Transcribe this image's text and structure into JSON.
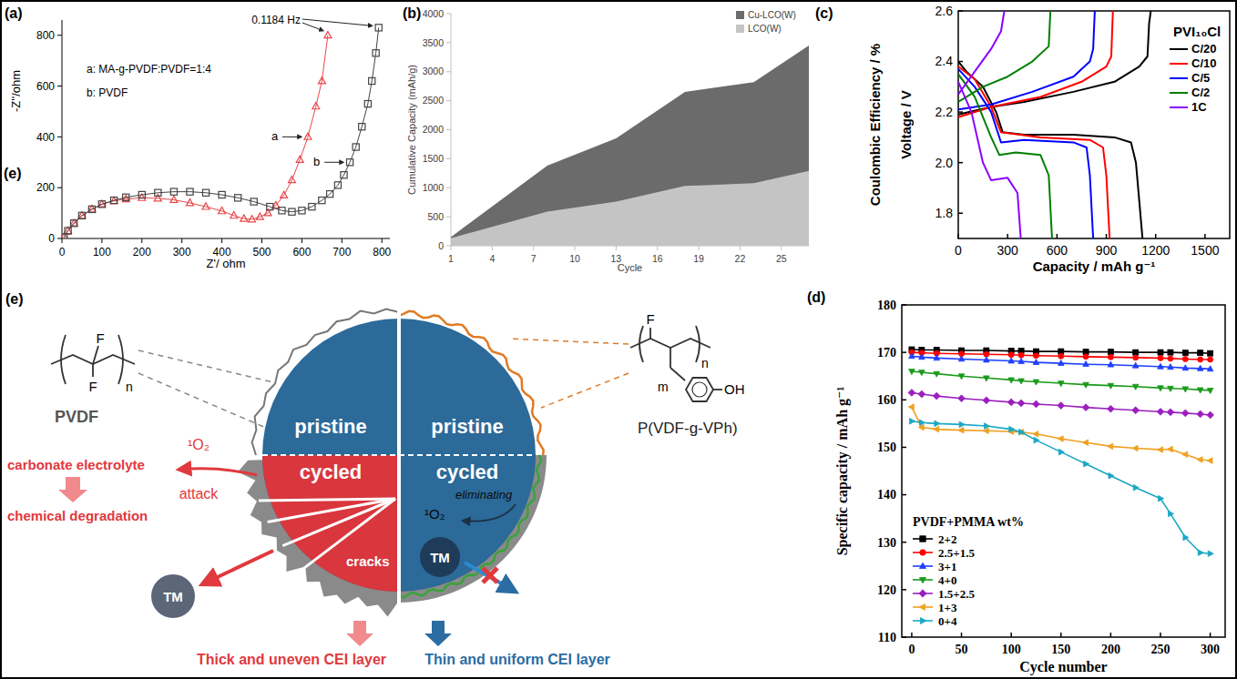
{
  "chart_data": [
    {
      "panel": "(a)",
      "type": "scatter",
      "x_label": "Z'/ ohm",
      "y_label": "-Z''/ohm",
      "xlim": [
        0,
        820
      ],
      "ylim": [
        0,
        860
      ],
      "xticks": [
        0,
        100,
        200,
        300,
        400,
        500,
        600,
        700,
        800
      ],
      "yticks": [
        0,
        200,
        400,
        600,
        800
      ],
      "annotations": [
        "0.1184 Hz",
        "(e)"
      ],
      "series": [
        {
          "name": "a: MA-g-PVDF:PVDF=1:4",
          "label": "a",
          "color": "#e8474b",
          "marker": "triangle",
          "line_style": "solid",
          "x": [
            5,
            15,
            30,
            50,
            75,
            100,
            130,
            160,
            200,
            240,
            280,
            320,
            360,
            400,
            430,
            455,
            475,
            495,
            515,
            535,
            555,
            575,
            595,
            615,
            635,
            650,
            665
          ],
          "values": [
            5,
            30,
            60,
            90,
            115,
            135,
            148,
            155,
            160,
            158,
            152,
            140,
            125,
            108,
            90,
            78,
            75,
            85,
            100,
            130,
            170,
            230,
            310,
            400,
            520,
            620,
            800
          ]
        },
        {
          "name": "b: PVDF",
          "label": "b",
          "color": "#444444",
          "marker": "square",
          "line_style": "solid",
          "x": [
            5,
            15,
            30,
            50,
            75,
            100,
            130,
            160,
            200,
            240,
            280,
            320,
            360,
            400,
            440,
            480,
            520,
            550,
            575,
            600,
            625,
            650,
            670,
            690,
            705,
            720,
            735,
            750,
            765,
            775,
            785,
            792
          ],
          "values": [
            5,
            30,
            60,
            90,
            115,
            135,
            150,
            162,
            172,
            180,
            184,
            184,
            180,
            172,
            160,
            145,
            125,
            110,
            105,
            110,
            125,
            150,
            175,
            210,
            250,
            300,
            360,
            440,
            530,
            620,
            730,
            830
          ]
        }
      ]
    },
    {
      "panel": "(b)",
      "type": "area",
      "stacked": false,
      "legend": "top-right",
      "x_label": "Cycle",
      "y_label": "Cumulative Capacity (mAh/g)",
      "xlim": [
        1,
        27
      ],
      "xticks": [
        1,
        4,
        7,
        10,
        13,
        16,
        19,
        22,
        25
      ],
      "ylim": [
        0,
        4000
      ],
      "yticks": [
        0,
        500,
        1000,
        1500,
        2000,
        2500,
        3000,
        3500,
        4000
      ],
      "series": [
        {
          "name": "Cu-LCO(W)",
          "color": "#6b6b6b",
          "x": [
            1,
            8,
            13,
            18,
            23,
            27
          ],
          "values": [
            150,
            1380,
            1850,
            2650,
            2820,
            3450
          ]
        },
        {
          "name": "LCO(W)",
          "color": "#c4c4c4",
          "x": [
            1,
            8,
            13,
            18,
            23,
            27
          ],
          "values": [
            130,
            590,
            760,
            1030,
            1080,
            1290
          ]
        }
      ]
    },
    {
      "panel": "(c)",
      "type": "line",
      "legend": "top-right",
      "legend_title": "PVI₁₀Cl",
      "x_label": "Capacity / mAh g⁻¹",
      "y_label": "Voltage / V",
      "y_label_2": "Coulombic Efficiency / %",
      "xlim": [
        0,
        1650
      ],
      "xticks": [
        0,
        300,
        600,
        900,
        1200,
        1500
      ],
      "ylim": [
        1.7,
        2.6
      ],
      "yticks": [
        1.8,
        {
          "value": 2,
          "label": "2.0"
        },
        2.2,
        2.4,
        2.6
      ],
      "series": [
        {
          "name": "C/20",
          "color": "#000000",
          "line_style": "solid",
          "x": [
            0,
            50,
            150,
            230,
            270,
            400,
            700,
            950,
            1050,
            1080,
            1100,
            1120,
            null,
            0,
            200,
            400,
            700,
            950,
            1100,
            1150,
            1160,
            1170
          ],
          "values": [
            2.4,
            2.36,
            2.3,
            2.2,
            2.12,
            2.11,
            2.11,
            2.1,
            2.08,
            2.0,
            1.85,
            1.7,
            null,
            2.19,
            2.22,
            2.24,
            2.28,
            2.32,
            2.38,
            2.42,
            2.55,
            2.6
          ]
        },
        {
          "name": "C/10",
          "color": "#ff0000",
          "line_style": "solid",
          "x": [
            0,
            100,
            200,
            260,
            500,
            800,
            880,
            900,
            920,
            null,
            0,
            200,
            500,
            750,
            900,
            930,
            940
          ],
          "values": [
            2.38,
            2.33,
            2.22,
            2.12,
            2.1,
            2.09,
            2.06,
            1.95,
            1.7,
            null,
            2.18,
            2.22,
            2.26,
            2.32,
            2.38,
            2.42,
            2.6
          ]
        },
        {
          "name": "C/5",
          "color": "#0000ff",
          "line_style": "solid",
          "x": [
            0,
            100,
            200,
            260,
            400,
            700,
            780,
            800,
            820,
            null,
            0,
            200,
            450,
            700,
            800,
            820,
            830
          ],
          "values": [
            2.37,
            2.3,
            2.2,
            2.08,
            2.09,
            2.08,
            2.06,
            1.95,
            1.7,
            null,
            2.21,
            2.23,
            2.28,
            2.34,
            2.4,
            2.45,
            2.6
          ]
        },
        {
          "name": "C/2",
          "color": "#008000",
          "line_style": "solid",
          "x": [
            0,
            100,
            200,
            250,
            350,
            500,
            550,
            570,
            null,
            0,
            150,
            300,
            450,
            550,
            560
          ],
          "values": [
            2.35,
            2.26,
            2.1,
            2.03,
            2.04,
            2.03,
            1.95,
            1.7,
            null,
            2.24,
            2.3,
            2.34,
            2.4,
            2.46,
            2.6
          ]
        },
        {
          "name": "1C",
          "color": "#8b00ff",
          "line_style": "solid",
          "x": [
            0,
            80,
            150,
            200,
            300,
            360,
            380,
            null,
            0,
            100,
            200,
            260,
            280
          ],
          "values": [
            2.32,
            2.2,
            2.0,
            1.93,
            1.94,
            1.88,
            1.7,
            null,
            2.27,
            2.36,
            2.45,
            2.52,
            2.6
          ]
        }
      ]
    },
    {
      "panel": "(d)",
      "type": "line",
      "legend": "bottom-left",
      "legend_title": "PVDF+PMMA wt%",
      "x_label": "Cycle number",
      "y_label": "Specific capacity / mAh g⁻¹",
      "xlim": [
        -10,
        315
      ],
      "xticks": [
        0,
        50,
        100,
        150,
        200,
        250,
        300
      ],
      "ylim": [
        110,
        180
      ],
      "yticks": [
        110,
        120,
        130,
        140,
        150,
        160,
        170,
        180
      ],
      "x": [
        0,
        10,
        25,
        50,
        75,
        100,
        110,
        125,
        150,
        175,
        200,
        225,
        250,
        260,
        275,
        290,
        300
      ],
      "series": [
        {
          "name": "2+2",
          "color": "#000000",
          "marker": "square",
          "values": [
            170.6,
            170.5,
            170.5,
            170.4,
            170.4,
            170.3,
            170.3,
            170.2,
            170.2,
            170.1,
            170.1,
            170.0,
            170.0,
            170.0,
            169.9,
            169.9,
            169.8
          ]
        },
        {
          "name": "2.5+1.5",
          "color": "#ff0000",
          "marker": "circle",
          "values": [
            170.0,
            169.9,
            169.8,
            169.7,
            169.6,
            169.5,
            169.4,
            169.3,
            169.2,
            169.1,
            169.0,
            168.9,
            168.8,
            168.7,
            168.6,
            168.5,
            168.5
          ]
        },
        {
          "name": "3+1",
          "color": "#1f3fff",
          "marker": "triangle",
          "values": [
            169.2,
            169.0,
            168.8,
            168.6,
            168.4,
            168.2,
            168.1,
            167.9,
            167.7,
            167.5,
            167.4,
            167.2,
            167.0,
            166.9,
            166.7,
            166.6,
            166.5
          ]
        },
        {
          "name": "4+0",
          "color": "#1a9a1a",
          "marker": "triangle-down",
          "values": [
            166.0,
            165.8,
            165.5,
            165.0,
            164.6,
            164.2,
            164.0,
            163.8,
            163.5,
            163.2,
            163.0,
            162.8,
            162.5,
            162.4,
            162.3,
            162.1,
            162.0
          ]
        },
        {
          "name": "1.5+2.5",
          "color": "#9b1fbf",
          "marker": "diamond",
          "values": [
            161.5,
            161.2,
            160.8,
            160.3,
            159.9,
            159.5,
            159.3,
            159.1,
            158.8,
            158.4,
            158.1,
            157.8,
            157.5,
            157.4,
            157.2,
            157.0,
            156.8
          ]
        },
        {
          "name": "1+3",
          "color": "#f0a020",
          "marker": "triangle-left",
          "values": [
            158.5,
            154.2,
            153.8,
            153.6,
            153.5,
            153.3,
            153.2,
            152.8,
            151.8,
            151.0,
            150.2,
            149.8,
            149.5,
            149.6,
            148.5,
            147.4,
            147.2
          ]
        },
        {
          "name": "0+4",
          "color": "#1ba7c4",
          "marker": "triangle-right",
          "values": [
            155.5,
            155.2,
            155.0,
            154.8,
            154.5,
            153.8,
            153.2,
            151.5,
            149.0,
            146.5,
            144.0,
            141.5,
            139.2,
            136.0,
            131.0,
            127.8,
            127.6
          ]
        }
      ]
    }
  ],
  "diagram": {
    "panel": "(e)",
    "left": {
      "polymer": "PVDF",
      "formula": [
        "F",
        "F",
        "n"
      ],
      "pristine": "pristine",
      "cycled": "cycled",
      "electrolyte": "carbonate electrolyte",
      "degradation": "chemical degradation",
      "oxygen": "¹O₂",
      "attack": "attack",
      "cracks": "cracks",
      "tm": "TM",
      "cei": "Thick and uneven CEI layer"
    },
    "right": {
      "polymer": "P(VDF-g-VPh)",
      "formula": [
        "F",
        "n",
        "m",
        "OH"
      ],
      "pristine": "pristine",
      "cycled": "cycled",
      "oxygen": "¹O₂",
      "eliminating": "eliminating",
      "tm": "TM",
      "cei": "Thin and uniform CEI layer"
    }
  }
}
